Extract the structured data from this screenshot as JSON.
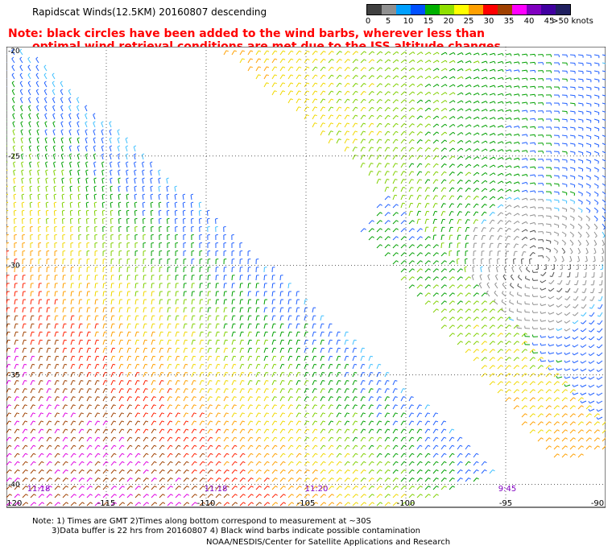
{
  "title": "Rapidscat Winds(12.5KM) 20160807 descending",
  "note": {
    "line1": "Note: black circles have been added to the wind barbs, wherever less than",
    "line2": "optimal wind retrieval conditions are met due to the ISS altitude changes."
  },
  "legend": {
    "labels": [
      "0",
      "5",
      "10",
      "15",
      "20",
      "25",
      "30",
      "35",
      "40",
      "45",
      ">50 knots"
    ],
    "colors": [
      "#404040",
      "#909090",
      "#00a0ff",
      "#0050ff",
      "#00b000",
      "#90e000",
      "#ffff00",
      "#ffa000",
      "#ff0000",
      "#a04000",
      "#ff00ff",
      "#8000c0",
      "#4000a0",
      "#202060"
    ]
  },
  "axes": {
    "lon_labels": [
      "-120",
      "-115",
      "-110",
      "-105",
      "-100",
      "-95",
      "-90"
    ],
    "lat_labels": [
      "-20",
      "-25",
      "-30",
      "-35",
      "-40"
    ],
    "lon_values": [
      -120,
      -115,
      -110,
      -105,
      -100,
      -95,
      -90
    ],
    "lat_values": [
      -20,
      -25,
      -30,
      -35,
      -40
    ]
  },
  "pass_times": [
    "11:18",
    "11:18",
    "11:20",
    "9:45"
  ],
  "footer": {
    "line1": "Note: 1) Times are GMT 2)Times along bottom correspond to measurement at ~30S",
    "line2": "3)Data buffer is 22 hrs from 20160807 4) Black wind barbs indicate possible contamination",
    "line3": "NOAA/NESDIS/Center for Satellite Applications and Research"
  }
}
